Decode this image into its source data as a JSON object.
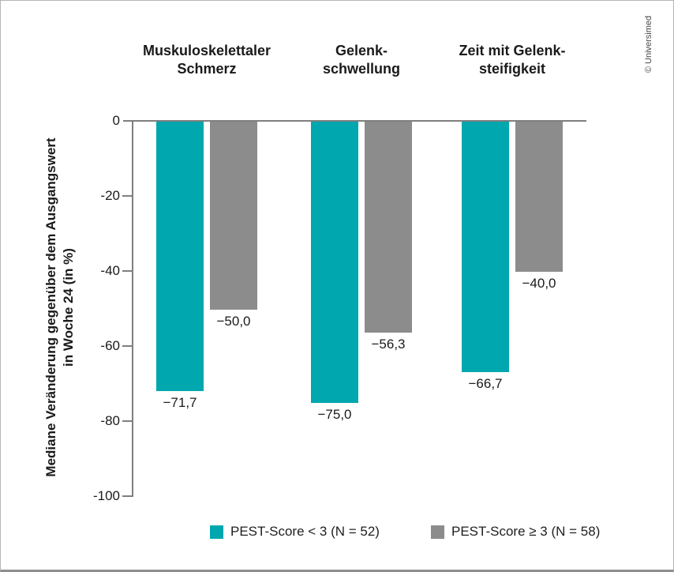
{
  "figure": {
    "copyright": "© Universimed",
    "colors": {
      "teal": "#00a7ae",
      "gray": "#8c8c8c",
      "axis": "#7f7f7f"
    }
  },
  "y_axis": {
    "title_line1": "Mediane Veränderung gegenüber dem Ausgangswert",
    "title_line2": "in Woche 24 (in %)",
    "tick_labels": [
      "0",
      "-20",
      "-40",
      "-60",
      "-80",
      "-100"
    ],
    "tick_values": [
      0,
      -20,
      -40,
      -60,
      -80,
      -100
    ]
  },
  "chart_data": {
    "type": "bar",
    "title": "",
    "categories": [
      "Muskuloskelettaler Schmerz",
      "Gelenkschwellung",
      "Zeit mit Gelenksteifigkeit"
    ],
    "category_lines": [
      [
        "Muskuloskelettaler",
        "Schmerz"
      ],
      [
        "Gelenk-",
        "schwellung"
      ],
      [
        "Zeit mit Gelenk-",
        "steifigkeit"
      ]
    ],
    "series": [
      {
        "name": "PEST-Score < 3 (N = 52)",
        "color": "#00a7ae",
        "values": [
          -71.7,
          -75.0,
          -66.7
        ],
        "labels": [
          "−71,7",
          "−75,0",
          "−66,7"
        ]
      },
      {
        "name": "PEST-Score ≥ 3 (N = 58)",
        "color": "#8c8c8c",
        "values": [
          -50.0,
          -56.3,
          -40.0
        ],
        "labels": [
          "−50,0",
          "−56,3",
          "−40,0"
        ]
      }
    ],
    "ylabel": "Mediane Veränderung gegenüber dem Ausgangswert in Woche 24 (in %)",
    "ylim": [
      -100,
      0
    ],
    "yticks": [
      0,
      -20,
      -40,
      -60,
      -80,
      -100
    ],
    "grid": false,
    "legend_position": "bottom"
  },
  "legend": {
    "items": [
      {
        "label": "PEST-Score < 3 (N = 52)",
        "color": "#00a7ae"
      },
      {
        "label": "PEST-Score ≥ 3 (N = 58)",
        "color": "#8c8c8c"
      }
    ]
  }
}
